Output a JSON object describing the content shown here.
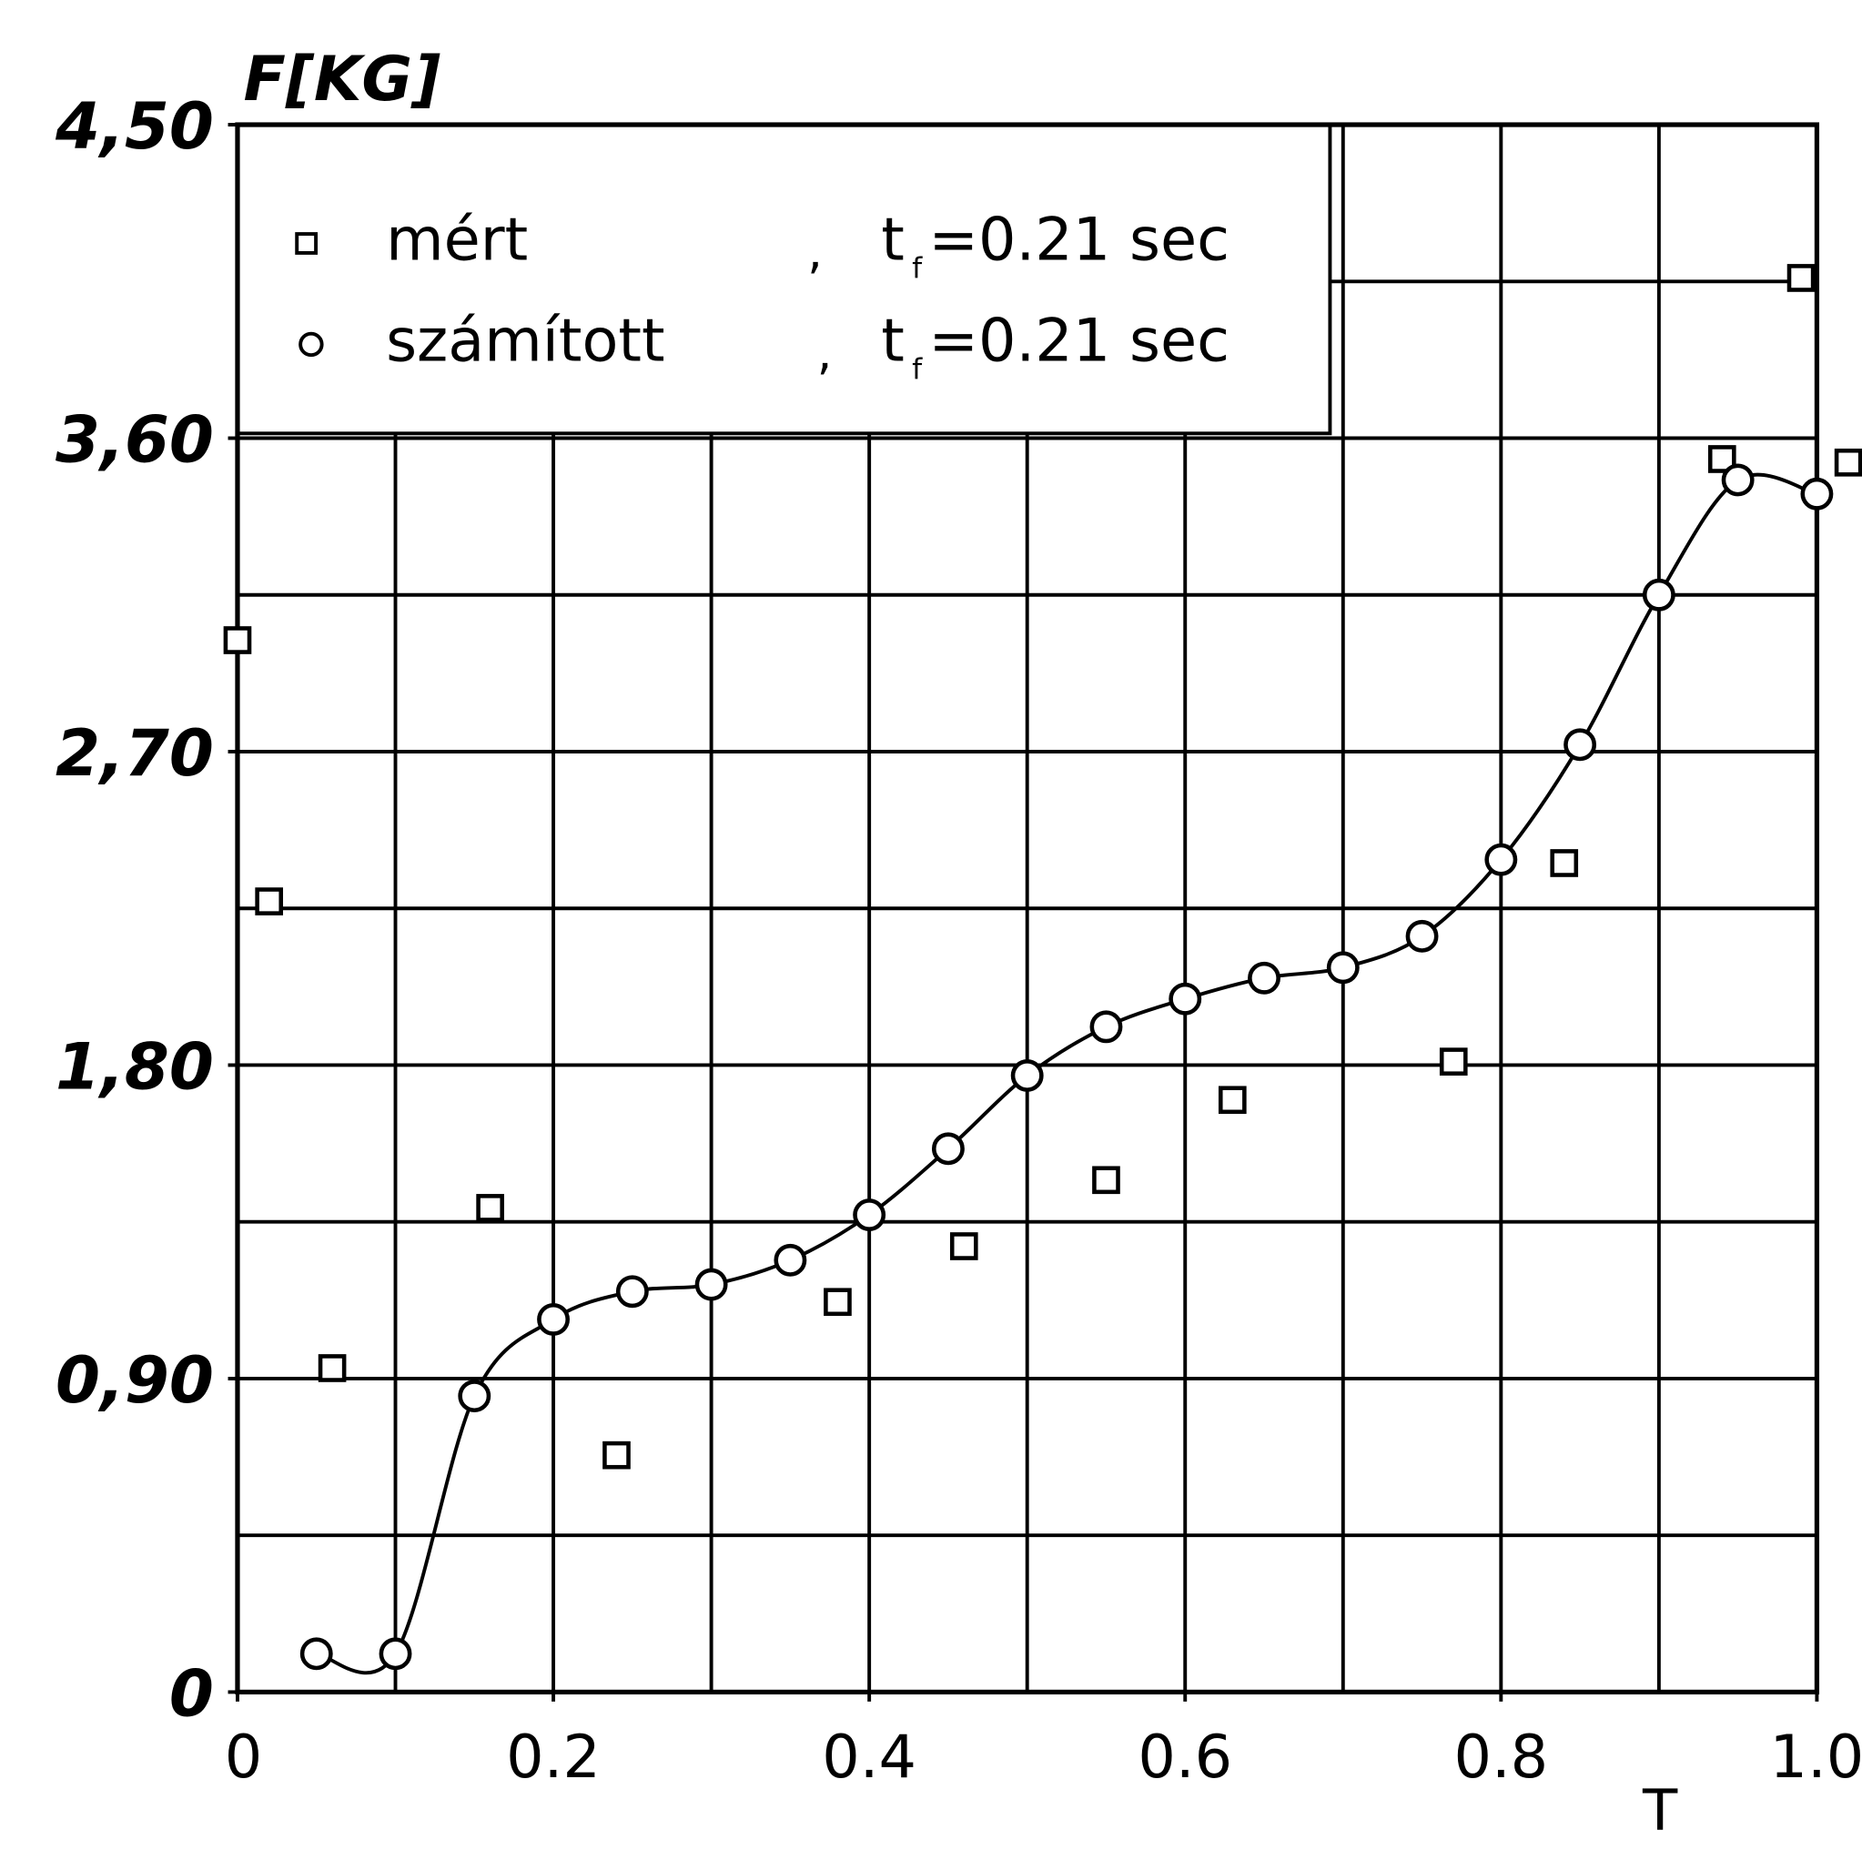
{
  "chart_data": {
    "type": "scatter",
    "x_label": "T",
    "y_label": "F[KG]",
    "xlim": [
      0,
      1
    ],
    "ylim": [
      0,
      4.5
    ],
    "xticks": [
      0,
      0.2,
      0.4,
      0.6,
      0.8,
      {
        "value": 1,
        "label": "1.0"
      }
    ],
    "yticks": [
      0,
      {
        "value": 0.9,
        "label": "0,90"
      },
      {
        "value": 1.8,
        "label": "1,80"
      },
      {
        "value": 2.7,
        "label": "2,70"
      },
      {
        "value": 3.6,
        "label": "3,60"
      },
      {
        "value": 4.5,
        "label": "4,50"
      }
    ],
    "xgrid": [
      0.1,
      0.2,
      0.3,
      0.4,
      0.5,
      0.6,
      0.7,
      0.8,
      0.9
    ],
    "ygrid": [
      0.45,
      0.9,
      1.35,
      1.8,
      2.25,
      2.7,
      3.15,
      3.6,
      4.05
    ],
    "grid": true,
    "legend": "upper left",
    "series": [
      {
        "name": "mért",
        "marker": "square",
        "color": "#000000",
        "note": {
          "comma": ",",
          "text": "t",
          "sub": "f",
          "rest": "=0.21 sec"
        },
        "x": [
          0.0,
          0.02,
          0.06,
          0.16,
          0.24,
          0.38,
          0.46,
          0.55,
          0.63,
          0.77,
          0.84,
          0.94,
          0.99,
          1.02
        ],
        "values": [
          3.02,
          2.27,
          0.93,
          1.39,
          0.68,
          1.12,
          1.28,
          1.47,
          1.7,
          1.81,
          2.38,
          3.54,
          4.06,
          3.53
        ]
      },
      {
        "name": "számított",
        "marker": "circle",
        "color": "#000000",
        "line": true,
        "note": {
          "comma": ",",
          "text": "t",
          "sub": "f",
          "rest": "=0.21 sec"
        },
        "x": [
          0.05,
          0.1,
          0.15,
          0.2,
          0.25,
          0.3,
          0.35,
          0.4,
          0.45,
          0.5,
          0.55,
          0.6,
          0.65,
          0.7,
          0.75,
          0.8,
          0.85,
          0.9,
          0.95,
          1.0
        ],
        "values": [
          0.11,
          0.11,
          0.85,
          1.07,
          1.15,
          1.17,
          1.24,
          1.37,
          1.56,
          1.77,
          1.91,
          1.99,
          2.05,
          2.08,
          2.17,
          2.39,
          2.72,
          3.15,
          3.48,
          3.44
        ]
      }
    ]
  }
}
